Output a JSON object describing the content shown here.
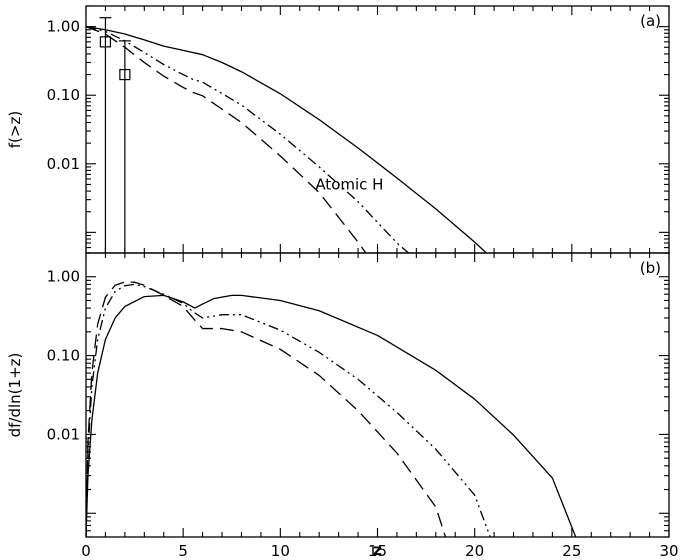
{
  "chart_data": [
    {
      "type": "line",
      "panel_label": "(a)",
      "ylabel": "f(>z)",
      "xlabel": "",
      "xlim": [
        0,
        30
      ],
      "ylim": [
        0.0005,
        2.0
      ],
      "yscale": "log",
      "x_tick_labels": [
        "0",
        "5",
        "10",
        "15",
        "20",
        "25",
        "30"
      ],
      "x_tick_labels_shown": false,
      "y_tick_labels": [
        "1.00",
        "0.10",
        "0.01"
      ],
      "annotation": "Atomic H",
      "series": [
        {
          "style": "solid",
          "x": [
            0,
            1,
            2,
            3,
            4,
            5,
            6,
            7,
            8,
            10,
            12,
            14,
            16,
            18,
            20,
            20.6
          ],
          "y": [
            1.0,
            0.9,
            0.78,
            0.64,
            0.52,
            0.45,
            0.39,
            0.3,
            0.22,
            0.105,
            0.044,
            0.017,
            0.0062,
            0.0022,
            0.00072,
            0.0005
          ]
        },
        {
          "style": "dash-dot-dot",
          "x": [
            0,
            1,
            2,
            3,
            4,
            5,
            5.5,
            6,
            8,
            10,
            12,
            14,
            16,
            16.6
          ],
          "y": [
            1.0,
            0.85,
            0.62,
            0.42,
            0.28,
            0.2,
            0.17,
            0.155,
            0.072,
            0.027,
            0.009,
            0.0028,
            0.0007,
            0.0005
          ]
        },
        {
          "style": "dashed",
          "x": [
            0,
            1,
            2,
            3,
            4,
            5,
            5.5,
            6,
            8,
            10,
            12,
            14,
            14.4
          ],
          "y": [
            1.0,
            0.78,
            0.5,
            0.3,
            0.19,
            0.13,
            0.11,
            0.098,
            0.04,
            0.013,
            0.0038,
            0.00072,
            0.0005
          ]
        }
      ],
      "data_points": [
        {
          "x": 1.0,
          "y": 0.6,
          "y_low": 0.0005,
          "y_high": 1.35
        },
        {
          "x": 2.0,
          "y": 0.2,
          "y_low": 0.0005,
          "y_high": 0.62
        }
      ]
    },
    {
      "type": "line",
      "panel_label": "(b)",
      "ylabel": "df/dln(1+z)",
      "xlabel": "z",
      "xlim": [
        0,
        30
      ],
      "ylim": [
        0.0005,
        2.0
      ],
      "yscale": "log",
      "x_tick_labels": [
        "0",
        "5",
        "10",
        "15",
        "20",
        "25",
        "30"
      ],
      "y_tick_labels": [
        "1.00",
        "0.10",
        "0.01"
      ],
      "series": [
        {
          "style": "solid",
          "x": [
            0,
            0.1,
            0.3,
            0.6,
            1,
            1.5,
            2,
            3,
            4,
            5,
            5.6,
            6,
            6.6,
            7.5,
            8,
            10,
            12,
            15,
            18,
            20,
            22,
            24,
            25.2
          ],
          "y": [
            0.0005,
            0.003,
            0.015,
            0.06,
            0.16,
            0.3,
            0.42,
            0.56,
            0.58,
            0.48,
            0.4,
            0.45,
            0.53,
            0.58,
            0.58,
            0.5,
            0.37,
            0.18,
            0.065,
            0.028,
            0.0098,
            0.0028,
            0.0005
          ]
        },
        {
          "style": "dash-dot-dot",
          "x": [
            0,
            0.1,
            0.3,
            0.6,
            1,
            1.5,
            2,
            2.5,
            3,
            4,
            5,
            5.5,
            6,
            7,
            8,
            10,
            12,
            14,
            16,
            18,
            20,
            20.8
          ],
          "y": [
            0.0005,
            0.006,
            0.04,
            0.16,
            0.4,
            0.65,
            0.77,
            0.8,
            0.75,
            0.6,
            0.46,
            0.36,
            0.3,
            0.33,
            0.33,
            0.21,
            0.11,
            0.05,
            0.019,
            0.0065,
            0.0017,
            0.0005
          ]
        },
        {
          "style": "dashed",
          "x": [
            0,
            0.1,
            0.3,
            0.6,
            1,
            1.5,
            2,
            2.5,
            3,
            4,
            5,
            5.5,
            6,
            7,
            8,
            10,
            12,
            14,
            16,
            18,
            18.5
          ],
          "y": [
            0.0005,
            0.008,
            0.06,
            0.25,
            0.55,
            0.78,
            0.86,
            0.85,
            0.78,
            0.58,
            0.42,
            0.3,
            0.22,
            0.22,
            0.2,
            0.12,
            0.056,
            0.02,
            0.0058,
            0.0012,
            0.0005
          ]
        }
      ]
    }
  ]
}
